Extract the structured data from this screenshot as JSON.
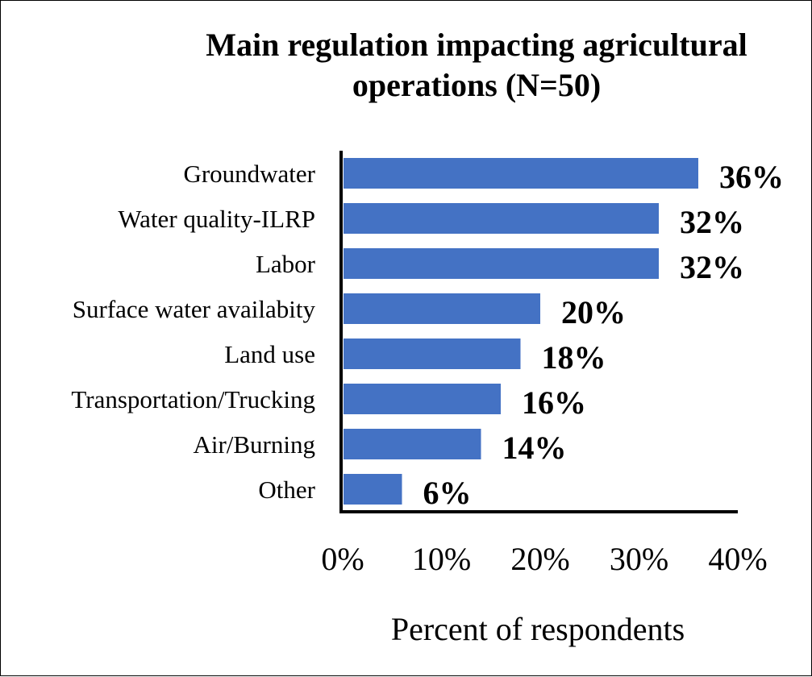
{
  "colors": {
    "bar": "#4472C4",
    "axis": "#000000",
    "text": "#000000"
  },
  "chart_data": {
    "type": "bar",
    "orientation": "horizontal",
    "title": "Main regulation impacting agricultural operations (N=50)",
    "xlabel": "Percent of respondents",
    "ylabel": "",
    "categories": [
      "Groundwater",
      "Water quality-ILRP",
      "Labor",
      "Surface water availabity",
      "Land use",
      "Transportation/Trucking",
      "Air/Burning",
      "Other"
    ],
    "values": [
      36,
      32,
      32,
      20,
      18,
      16,
      14,
      6
    ],
    "value_labels": [
      "36%",
      "32%",
      "32%",
      "20%",
      "18%",
      "16%",
      "14%",
      "6%"
    ],
    "xlim": [
      0,
      40
    ],
    "xticks": [
      0,
      10,
      20,
      30,
      40
    ],
    "xtick_labels": [
      "0%",
      "10%",
      "20%",
      "30%",
      "40%"
    ],
    "grid": false,
    "legend": "none"
  }
}
